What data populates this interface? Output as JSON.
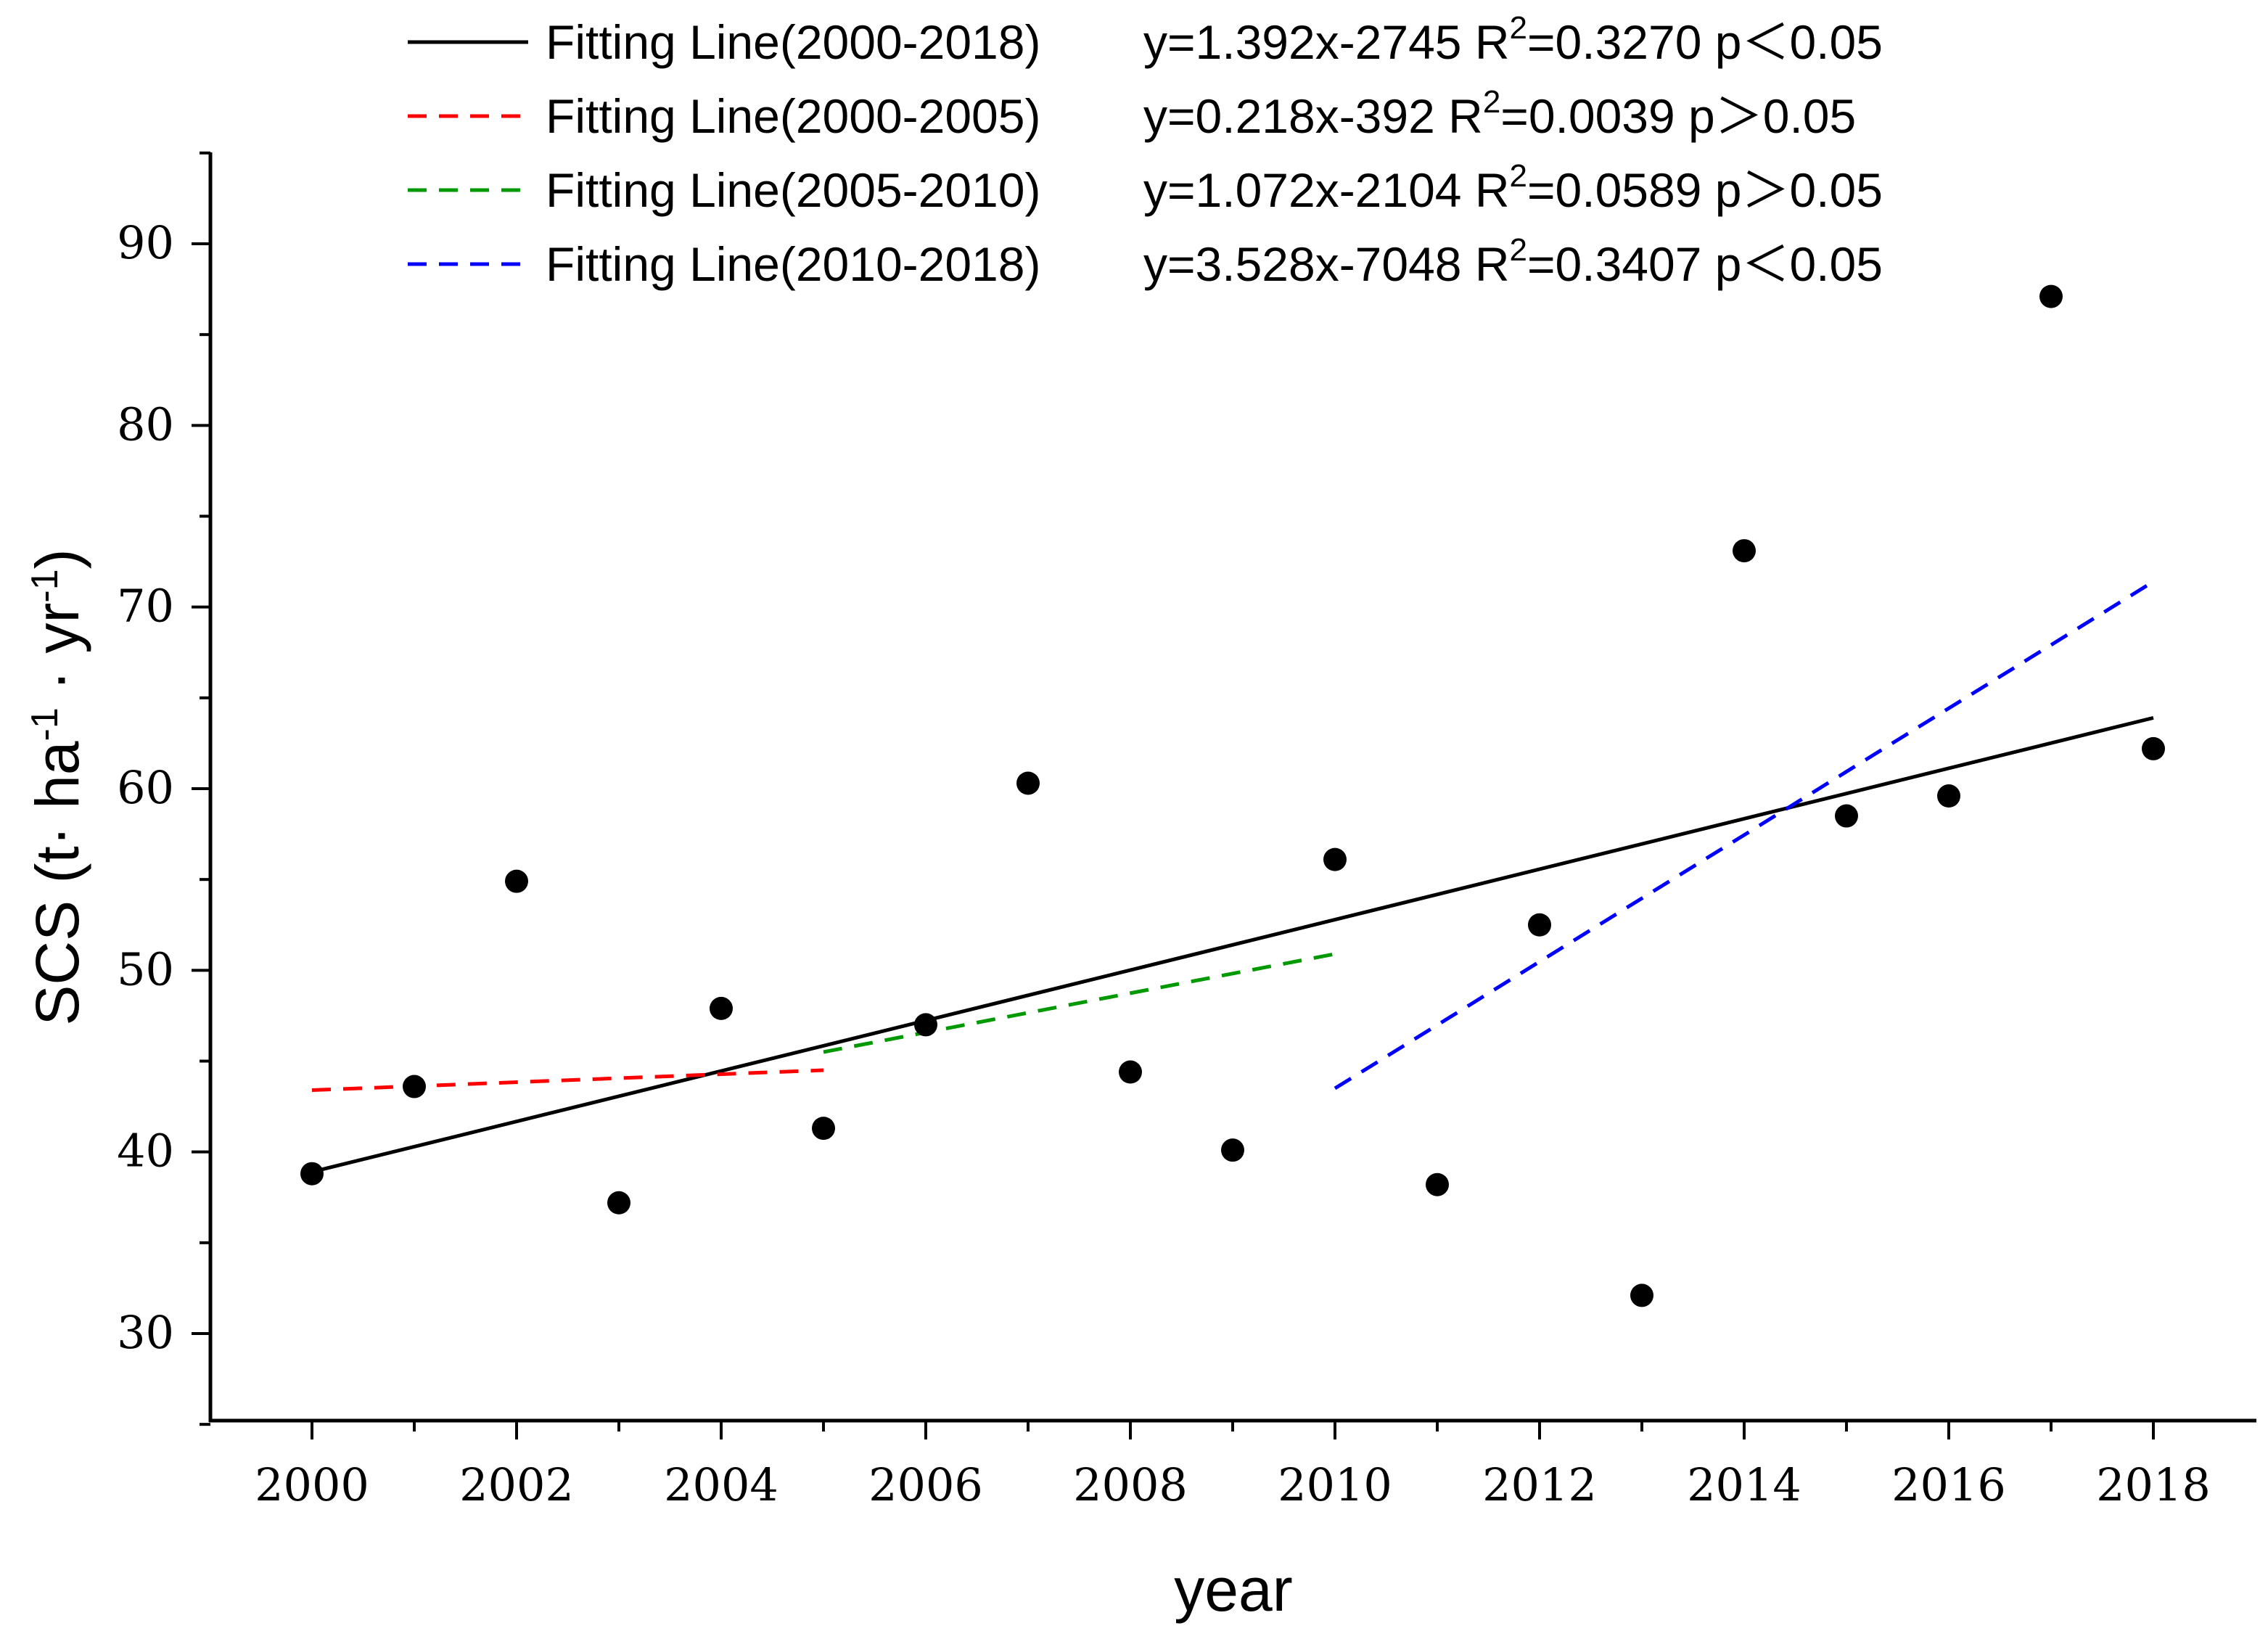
{
  "chart_data": {
    "type": "scatter",
    "xlabel": "year",
    "ylabel": {
      "prefix": "SCS (t",
      "mid1": "· ha",
      "sup1": "-1",
      "mid2": " · yr",
      "sup2": "-1",
      "suffix": ")"
    },
    "xlim": [
      1999.0,
      2019.0
    ],
    "ylim": [
      25,
      95
    ],
    "xticks": [
      2000,
      2002,
      2004,
      2006,
      2008,
      2010,
      2012,
      2014,
      2016,
      2018
    ],
    "yticks": [
      30,
      40,
      50,
      60,
      70,
      80,
      90
    ],
    "points": {
      "x": [
        2000,
        2001,
        2002,
        2003,
        2004,
        2005,
        2006,
        2007,
        2008,
        2009,
        2010,
        2011,
        2012,
        2013,
        2014,
        2015,
        2016,
        2017,
        2018
      ],
      "y": [
        38.8,
        43.6,
        54.9,
        37.2,
        47.9,
        41.3,
        47.0,
        60.3,
        44.4,
        40.1,
        56.1,
        38.2,
        52.5,
        32.1,
        73.1,
        58.5,
        59.6,
        87.1,
        62.2
      ]
    },
    "fit_lines": [
      {
        "name": "Fitting Line(2000-2018)",
        "eq_lhs": "y=1.392x-2745 R",
        "r2_sup": "2",
        "eq_rhs": "=0.3270 p＜0.05",
        "x_start": 2000,
        "x_end": 2018,
        "y_start": 38.9,
        "y_end": 63.9,
        "color": "#000000",
        "dashed": false
      },
      {
        "name": "Fitting Line(2000-2005)",
        "eq_lhs": "y=0.218x-392  R",
        "r2_sup": "2",
        "eq_rhs": "=0.0039 p＞0.05",
        "x_start": 2000,
        "x_end": 2005,
        "y_start": 43.4,
        "y_end": 44.5,
        "color": "#ff0000",
        "dashed": true
      },
      {
        "name": "Fitting Line(2005-2010)",
        "eq_lhs": "y=1.072x-2104 R",
        "r2_sup": "2",
        "eq_rhs": "=0.0589 p＞0.05",
        "x_start": 2005,
        "x_end": 2010,
        "y_start": 45.5,
        "y_end": 50.9,
        "color": "#009900",
        "dashed": true
      },
      {
        "name": "Fitting Line(2010-2018)",
        "eq_lhs": "y=3.528x-7048 R",
        "r2_sup": "2",
        "eq_rhs": "=0.3407 p＜0.05",
        "x_start": 2010,
        "x_end": 2018,
        "y_start": 43.5,
        "y_end": 71.4,
        "color": "#0000ff",
        "dashed": true
      }
    ]
  }
}
